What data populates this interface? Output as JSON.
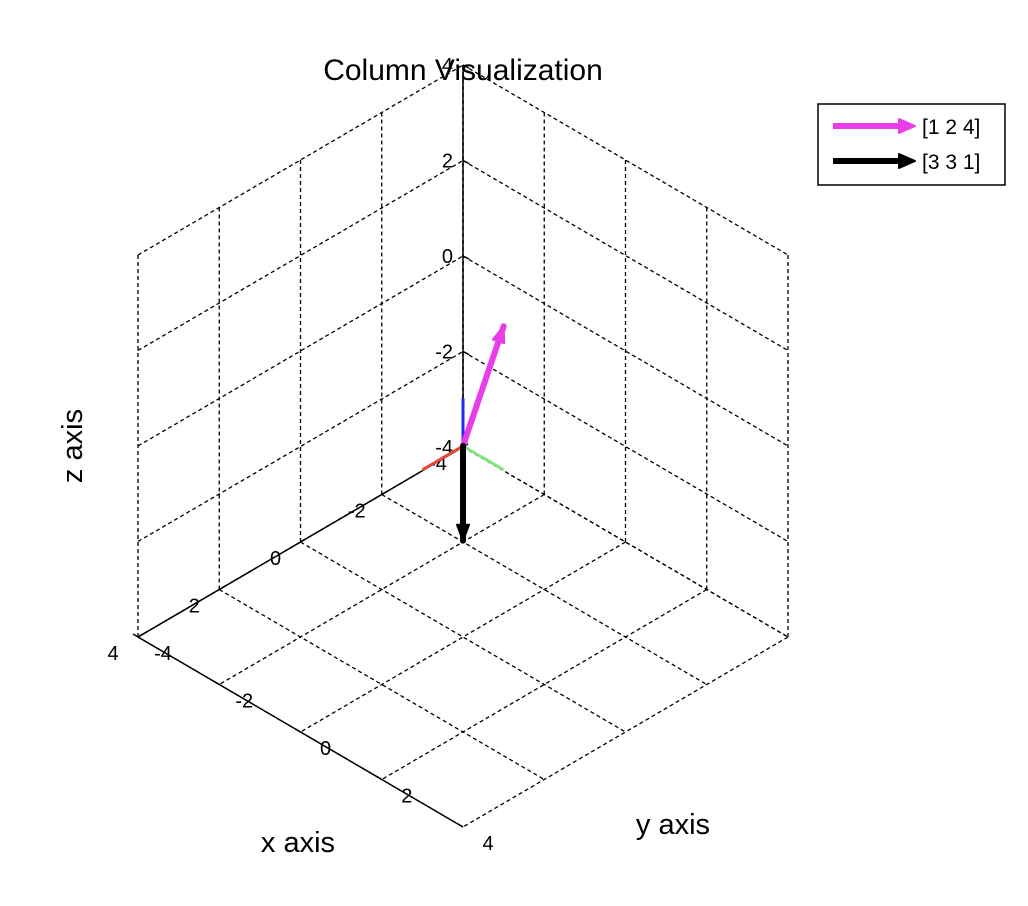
{
  "chart_data": {
    "type": "quiver3",
    "title": "Column Visualization",
    "xlabel": "x axis",
    "ylabel": "y axis",
    "zlabel": "z axis",
    "xlim": [
      -4,
      4
    ],
    "ylim": [
      -4,
      4
    ],
    "zlim": [
      -4,
      4
    ],
    "x_ticks": [
      -4,
      -2,
      0,
      2,
      4
    ],
    "y_ticks": [
      -4,
      -2,
      0,
      2,
      4
    ],
    "z_ticks": [
      -4,
      -2,
      0,
      2,
      4
    ],
    "grid": true,
    "legend_position": "top-right",
    "series": [
      {
        "name": "[1 2 4]",
        "vector": [
          1,
          2,
          4
        ],
        "color": "#e83de8"
      },
      {
        "name": "[3 3 1]",
        "vector": [
          3,
          3,
          1
        ],
        "color": "#000000"
      }
    ],
    "reference_axes": [
      {
        "axis": "x",
        "color": "#e8473a"
      },
      {
        "axis": "y",
        "color": "#7fe87f"
      },
      {
        "axis": "z",
        "color": "#1f2de8"
      }
    ]
  }
}
